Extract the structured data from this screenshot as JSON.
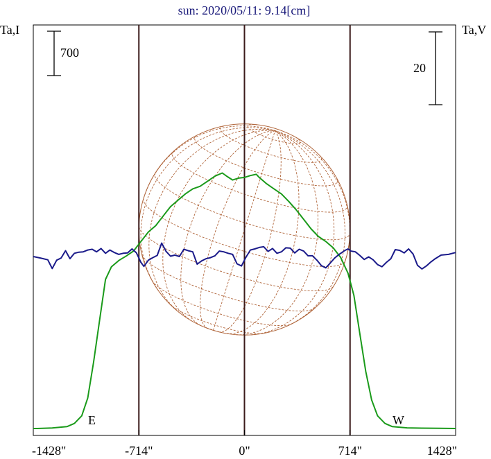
{
  "chart_data": {
    "type": "line",
    "title": "sun: 2020/05/11: 9.14[cm]",
    "left_axis_label": "Ta,I",
    "right_axis_label": "Ta,V",
    "left_scale_bar_label": "700",
    "right_scale_bar_label": "20",
    "x_unit": "arcsec",
    "x_tick_labels": [
      "-1428\"",
      "-714\"",
      "0\"",
      "714\"",
      "1428\""
    ],
    "x_ticks": [
      -1428,
      -714,
      0,
      714,
      1428
    ],
    "xlim": [
      -1428,
      1428
    ],
    "limb_x": [
      -714,
      714
    ],
    "center_line_x": 0,
    "limb_labels": {
      "east": "E",
      "west": "W"
    },
    "series": [
      {
        "name": "I",
        "color": "#1a9a1a",
        "points": [
          [
            -1428,
            0
          ],
          [
            -1400,
            0
          ],
          [
            -1300,
            8
          ],
          [
            -1200,
            30
          ],
          [
            -1150,
            80
          ],
          [
            -1100,
            200
          ],
          [
            -1060,
            480
          ],
          [
            -1020,
            1050
          ],
          [
            -980,
            1700
          ],
          [
            -940,
            2350
          ],
          [
            -900,
            2550
          ],
          [
            -850,
            2650
          ],
          [
            -800,
            2720
          ],
          [
            -750,
            2800
          ],
          [
            -700,
            2950
          ],
          [
            -650,
            3100
          ],
          [
            -600,
            3200
          ],
          [
            -550,
            3350
          ],
          [
            -500,
            3500
          ],
          [
            -450,
            3600
          ],
          [
            -400,
            3700
          ],
          [
            -350,
            3780
          ],
          [
            -300,
            3820
          ],
          [
            -250,
            3900
          ],
          [
            -200,
            3980
          ],
          [
            -150,
            4030
          ],
          [
            -120,
            3980
          ],
          [
            -80,
            3920
          ],
          [
            -40,
            3950
          ],
          [
            0,
            3960
          ],
          [
            40,
            3990
          ],
          [
            80,
            4010
          ],
          [
            100,
            3960
          ],
          [
            150,
            3860
          ],
          [
            200,
            3780
          ],
          [
            250,
            3700
          ],
          [
            300,
            3580
          ],
          [
            350,
            3450
          ],
          [
            400,
            3300
          ],
          [
            450,
            3150
          ],
          [
            500,
            3030
          ],
          [
            550,
            2950
          ],
          [
            600,
            2850
          ],
          [
            650,
            2700
          ],
          [
            700,
            2450
          ],
          [
            740,
            2100
          ],
          [
            780,
            1500
          ],
          [
            820,
            900
          ],
          [
            860,
            450
          ],
          [
            900,
            200
          ],
          [
            950,
            80
          ],
          [
            1000,
            30
          ],
          [
            1100,
            10
          ],
          [
            1200,
            5
          ],
          [
            1428,
            0
          ]
        ]
      },
      {
        "name": "V",
        "color": "#1a1a8a",
        "points": [
          [
            -1428,
            0
          ],
          [
            -1380,
            -0.4
          ],
          [
            -1330,
            -0.9
          ],
          [
            -1300,
            -3.3
          ],
          [
            -1270,
            -1.0
          ],
          [
            -1240,
            -0.4
          ],
          [
            -1210,
            1.6
          ],
          [
            -1180,
            -0.6
          ],
          [
            -1150,
            0.9
          ],
          [
            -1120,
            1.2
          ],
          [
            -1090,
            1.3
          ],
          [
            -1060,
            1.8
          ],
          [
            -1030,
            2.0
          ],
          [
            -1000,
            1.3
          ],
          [
            -970,
            2.2
          ],
          [
            -940,
            0.9
          ],
          [
            -910,
            1.8
          ],
          [
            -880,
            1.1
          ],
          [
            -850,
            0.6
          ],
          [
            -820,
            0.9
          ],
          [
            -790,
            1.0
          ],
          [
            -760,
            2.1
          ],
          [
            -730,
            1.0
          ],
          [
            -700,
            -1.6
          ],
          [
            -680,
            -2.7
          ],
          [
            -650,
            -1.0
          ],
          [
            -620,
            -0.3
          ],
          [
            -590,
            0.3
          ],
          [
            -560,
            3.7
          ],
          [
            -530,
            1.4
          ],
          [
            -500,
            0.1
          ],
          [
            -470,
            0.4
          ],
          [
            -440,
            0.0
          ],
          [
            -410,
            2.0
          ],
          [
            -380,
            1.6
          ],
          [
            -350,
            1.3
          ],
          [
            -320,
            -2.1
          ],
          [
            -290,
            -1.2
          ],
          [
            -260,
            -0.6
          ],
          [
            -230,
            -0.3
          ],
          [
            -200,
            0.2
          ],
          [
            -170,
            1.5
          ],
          [
            -140,
            1.3
          ],
          [
            -110,
            0.9
          ],
          [
            -80,
            0.6
          ],
          [
            -50,
            -2.0
          ],
          [
            -20,
            -2.6
          ],
          [
            10,
            -0.2
          ],
          [
            40,
            1.8
          ],
          [
            70,
            2.1
          ],
          [
            100,
            2.5
          ],
          [
            130,
            2.7
          ],
          [
            160,
            1.4
          ],
          [
            190,
            2.2
          ],
          [
            220,
            0.9
          ],
          [
            250,
            1.3
          ],
          [
            280,
            2.4
          ],
          [
            310,
            2.3
          ],
          [
            340,
            1.0
          ],
          [
            370,
            2.0
          ],
          [
            400,
            1.5
          ],
          [
            430,
            0.2
          ],
          [
            460,
            0.2
          ],
          [
            490,
            -1.0
          ],
          [
            520,
            -2.5
          ],
          [
            550,
            -3.1
          ],
          [
            580,
            -1.8
          ],
          [
            610,
            -0.4
          ],
          [
            640,
            0.6
          ],
          [
            680,
            1.7
          ],
          [
            700,
            2.1
          ],
          [
            720,
            1.5
          ],
          [
            750,
            1.3
          ],
          [
            780,
            0.3
          ],
          [
            810,
            -0.8
          ],
          [
            840,
            -0.1
          ],
          [
            870,
            -0.9
          ],
          [
            900,
            -2.2
          ],
          [
            930,
            -2.8
          ],
          [
            960,
            -1.6
          ],
          [
            990,
            -0.6
          ],
          [
            1020,
            1.9
          ],
          [
            1050,
            1.7
          ],
          [
            1080,
            1.0
          ],
          [
            1110,
            2.1
          ],
          [
            1140,
            0.7
          ],
          [
            1170,
            -2.4
          ],
          [
            1200,
            -3.4
          ],
          [
            1230,
            -2.6
          ],
          [
            1260,
            -1.5
          ],
          [
            1290,
            -0.6
          ],
          [
            1330,
            0.4
          ],
          [
            1380,
            0.6
          ],
          [
            1428,
            1.1
          ]
        ]
      }
    ],
    "grid": false
  }
}
